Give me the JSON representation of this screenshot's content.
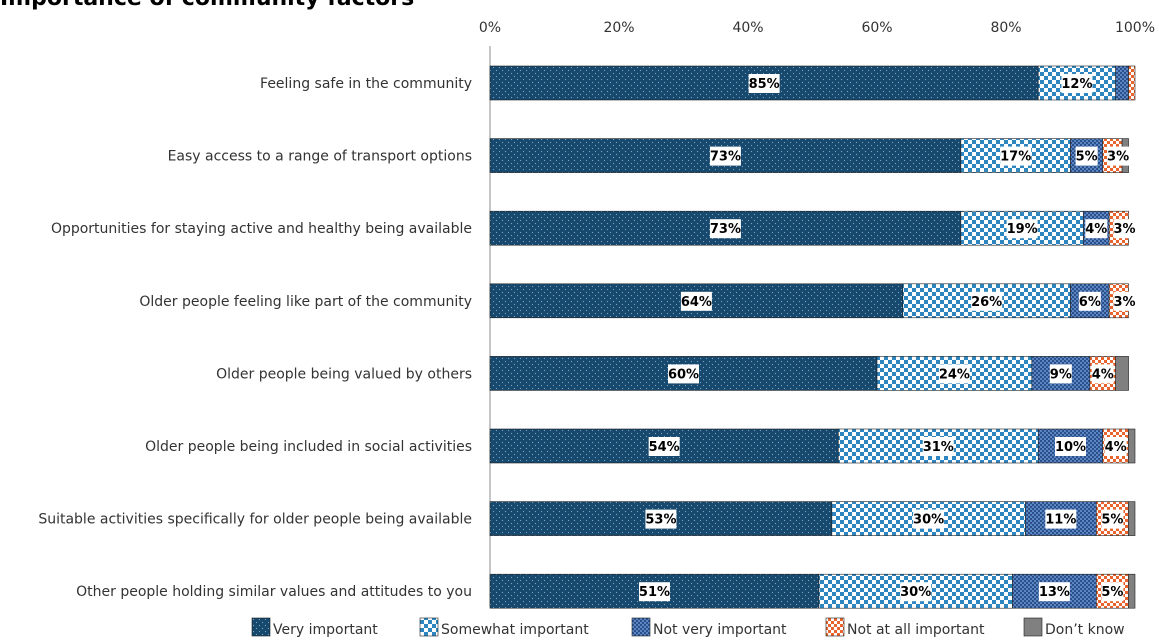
{
  "chart_data": {
    "type": "bar",
    "orientation": "horizontal",
    "stacked": true,
    "title": "Importance of community factors",
    "xlim": [
      0,
      100
    ],
    "x_ticks": [
      "0%",
      "20%",
      "40%",
      "60%",
      "80%",
      "100%"
    ],
    "categories": [
      "Feeling safe in the community",
      "Easy access to a range of transport options",
      "Opportunities for staying active and healthy being available",
      "Older people feeling like part of the community",
      "Older people being valued by others",
      "Older people being included in social activities",
      "Suitable activities specifically for older people being available",
      "Other people holding similar values and attitudes to you"
    ],
    "series": [
      {
        "name": "Very important",
        "values": [
          85,
          73,
          73,
          64,
          60,
          54,
          53,
          51
        ],
        "labels": [
          "85%",
          "73%",
          "73%",
          "64%",
          "60%",
          "54%",
          "53%",
          "51%"
        ],
        "color": "#17496e"
      },
      {
        "name": "Somewhat important",
        "values": [
          12,
          17,
          19,
          26,
          24,
          31,
          30,
          30
        ],
        "labels": [
          "12%",
          "17%",
          "19%",
          "26%",
          "24%",
          "31%",
          "30%",
          "30%"
        ],
        "color": "#2e86c1"
      },
      {
        "name": "Not very important",
        "values": [
          2,
          5,
          4,
          6,
          9,
          10,
          11,
          13
        ],
        "labels": [
          "",
          "5%",
          "4%",
          "6%",
          "9%",
          "10%",
          "11%",
          "13%"
        ],
        "color": "#5b86c4"
      },
      {
        "name": "Not at all important",
        "values": [
          1,
          3,
          3,
          3,
          4,
          4,
          5,
          5
        ],
        "labels": [
          "",
          "3%",
          "3%",
          "3%",
          "4%",
          "4%",
          "5%",
          "5%"
        ],
        "color": "#e8642c"
      },
      {
        "name": "Don’t know",
        "values": [
          0,
          1,
          0,
          0,
          2,
          1,
          1,
          1
        ],
        "labels": [
          "",
          "",
          "",
          "",
          "",
          "",
          "",
          ""
        ],
        "color": "#808080"
      }
    ],
    "legend_position": "bottom",
    "grid": false
  }
}
